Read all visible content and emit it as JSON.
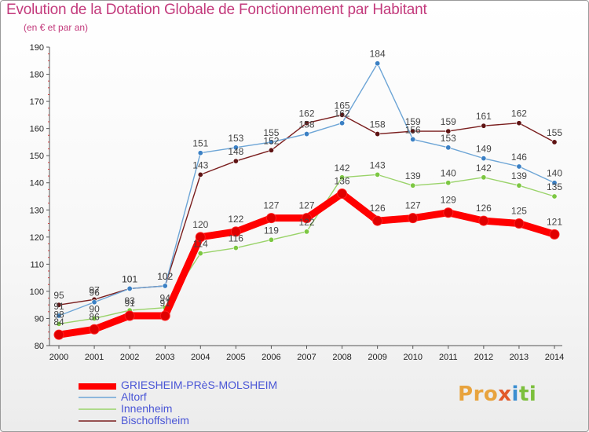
{
  "header": {
    "title": "Evolution de la Dotation Globale de Fonctionnement par Habitant",
    "subtitle": "(en € et par an)"
  },
  "logo": {
    "text": "Proxiti",
    "colors": [
      "#e8a33d",
      "#3b8fd1",
      "#e25a2a",
      "#7cbf3c"
    ]
  },
  "chart_data": {
    "type": "line",
    "x": [
      "2000",
      "2001",
      "2002",
      "2003",
      "2004",
      "2005",
      "2006",
      "2007",
      "2008",
      "2009",
      "2010",
      "2011",
      "2012",
      "2013",
      "2014"
    ],
    "ylim": [
      80,
      190
    ],
    "yticks": [
      80,
      90,
      100,
      110,
      120,
      130,
      140,
      150,
      160,
      170,
      180,
      190
    ],
    "grid": false,
    "legend": "bottom-left",
    "series": [
      {
        "name": "GRIESHEIM-PRèS-MOLSHEIM",
        "color": "#ff0000",
        "marker": "#e00000",
        "values": [
          84,
          86,
          91,
          91,
          120,
          122,
          127,
          127,
          136,
          126,
          127,
          129,
          126,
          125,
          121
        ],
        "labels": [
          "84",
          "86",
          "91",
          "91",
          "120",
          "122",
          "127",
          "127",
          "136",
          "126",
          "127",
          "129",
          "126",
          "125",
          "121"
        ]
      },
      {
        "name": "Altorf",
        "color": "#6da5d6",
        "marker": "#3b80c4",
        "values": [
          91,
          96,
          101,
          102,
          151,
          153,
          155,
          158,
          162,
          184,
          156,
          153,
          149,
          146,
          140
        ],
        "labels": [
          "91",
          "96",
          "101",
          "102",
          "151",
          "153",
          "155",
          "158",
          "162",
          "184",
          "156",
          "153",
          "149",
          "146",
          "140"
        ]
      },
      {
        "name": "Innenheim",
        "color": "#9ad36a",
        "marker": "#7cc742",
        "values": [
          88,
          90,
          93,
          94,
          114,
          116,
          119,
          122,
          142,
          143,
          139,
          140,
          142,
          139,
          135
        ],
        "labels": [
          "88",
          "90",
          "93",
          "94",
          "114",
          "116",
          "119",
          "122",
          "142",
          "143",
          "139",
          "140",
          "142",
          "139",
          "135"
        ]
      },
      {
        "name": "Bischoffsheim",
        "color": "#7a1e1e",
        "marker": "#5e1313",
        "values": [
          95,
          97,
          101,
          102,
          143,
          148,
          152,
          162,
          165,
          158,
          159,
          159,
          161,
          162,
          155
        ],
        "labels": [
          "95",
          "97",
          "101",
          "102",
          "143",
          "148",
          "152",
          "162",
          "165",
          "158",
          "159",
          "159",
          "161",
          "162",
          "155"
        ]
      }
    ]
  }
}
